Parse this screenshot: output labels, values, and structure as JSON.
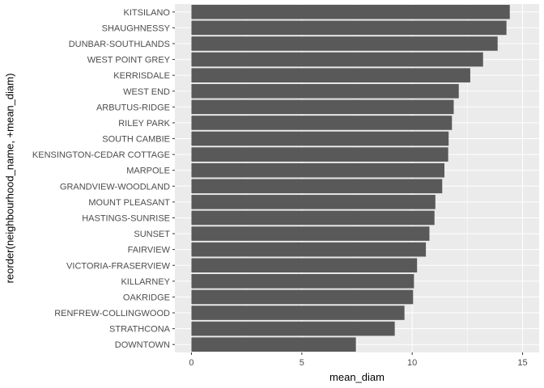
{
  "chart_data": {
    "type": "bar",
    "orientation": "horizontal",
    "categories": [
      "KITSILANO",
      "SHAUGHNESSY",
      "DUNBAR-SOUTHLANDS",
      "WEST POINT GREY",
      "KERRISDALE",
      "WEST END",
      "ARBUTUS-RIDGE",
      "RILEY PARK",
      "SOUTH CAMBIE",
      "KENSINGTON-CEDAR COTTAGE",
      "MARPOLE",
      "GRANDVIEW-WOODLAND",
      "MOUNT PLEASANT",
      "HASTINGS-SUNRISE",
      "SUNSET",
      "FAIRVIEW",
      "VICTORIA-FRASERVIEW",
      "KILLARNEY",
      "OAKRIDGE",
      "RENFREW-COLLINGWOOD",
      "STRATHCONA",
      "DOWNTOWN"
    ],
    "values": [
      14.42,
      14.27,
      13.87,
      13.21,
      12.63,
      12.11,
      11.88,
      11.8,
      11.65,
      11.63,
      11.46,
      11.36,
      11.05,
      11.01,
      10.78,
      10.62,
      10.22,
      10.08,
      10.04,
      9.65,
      9.21,
      7.45
    ],
    "xlabel": "mean_diam",
    "ylabel": "reorder(neighbourhood_name, +mean_diam)",
    "xlim": [
      0,
      15
    ],
    "xticks": [
      0,
      5,
      10,
      15
    ],
    "grid": true,
    "colors": {
      "bar": "#595959",
      "panel": "#ebebeb",
      "grid_major": "#ffffff",
      "tick_text": "#4d4d4d",
      "title_text": "#000000"
    }
  }
}
